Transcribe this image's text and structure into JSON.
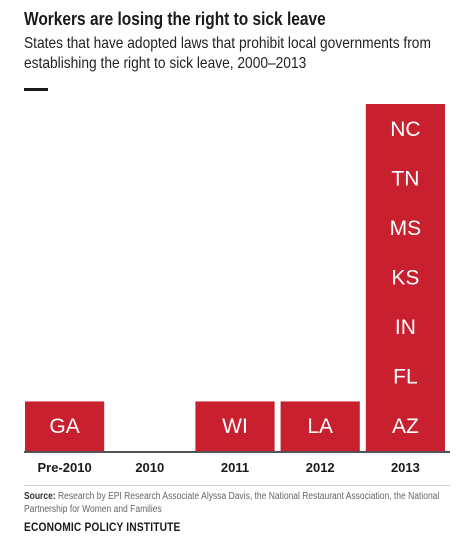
{
  "header": {
    "title": "Workers are losing the right to sick leave",
    "subtitle": "States that have adopted laws that prohibit local governments from establishing the right to sick leave, 2000–2013"
  },
  "chart_data": {
    "type": "bar",
    "title": "Workers are losing the right to sick leave",
    "subtitle": "States that have adopted laws that prohibit local governments from establishing the right to sick leave, 2000–2013",
    "categories": [
      "Pre-2010",
      "2010",
      "2011",
      "2012",
      "2013"
    ],
    "values": [
      1,
      0,
      1,
      1,
      7
    ],
    "stacks": [
      [
        "GA"
      ],
      [],
      [
        "WI"
      ],
      [
        "LA"
      ],
      [
        "AZ",
        "FL",
        "IN",
        "KS",
        "MS",
        "TN",
        "NC"
      ]
    ],
    "bar_color": "#c8202f",
    "label_color": "#ffffff",
    "ylim": [
      0,
      7
    ],
    "grid": false,
    "legend": "none"
  },
  "footer": {
    "source_label": "Source:",
    "source_text": "Research by EPI Research Associate Alyssa Davis, the National Restaurant Association, the National Partnership for Women and Families",
    "organization": "ECONOMIC POLICY INSTITUTE"
  }
}
